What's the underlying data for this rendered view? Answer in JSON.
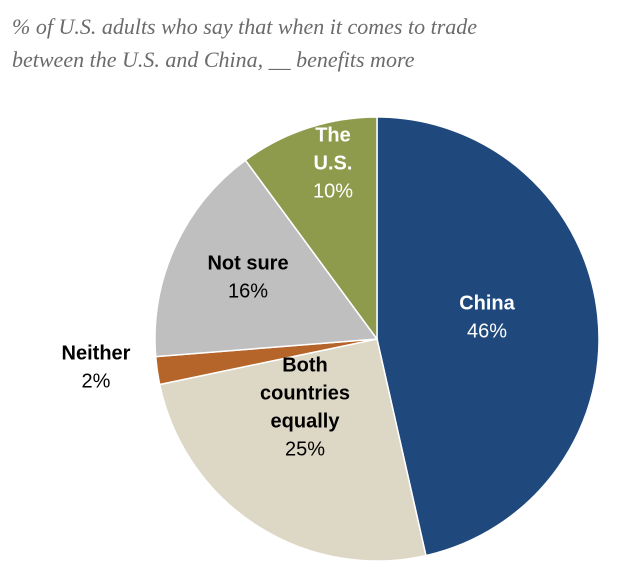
{
  "subtitle": {
    "line1": "% of U.S. adults who say that when it comes to trade",
    "line2": "between the U.S. and China, __ benefits more"
  },
  "chart_data": {
    "type": "pie",
    "subtitle": "% of U.S. adults who say that when it comes to trade between the U.S. and China, __ benefits more",
    "slices": [
      {
        "label": "China",
        "label_lines": [
          "China"
        ],
        "value": 46,
        "display": "46%",
        "color": "#1f497d",
        "label_color": "#ffffff"
      },
      {
        "label": "Both countries equally",
        "label_lines": [
          "Both",
          "countries",
          "equally"
        ],
        "value": 25,
        "display": "25%",
        "color": "#ddd7c6",
        "label_color": "#000000"
      },
      {
        "label": "Neither",
        "label_lines": [
          "Neither"
        ],
        "value": 2,
        "display": "2%",
        "color": "#b5652a",
        "label_color": "#000000"
      },
      {
        "label": "Not sure",
        "label_lines": [
          "Not sure"
        ],
        "value": 16,
        "display": "16%",
        "color": "#bfbfbf",
        "label_color": "#000000"
      },
      {
        "label": "The U.S.",
        "label_lines": [
          "The",
          "U.S."
        ],
        "value": 10,
        "display": "10%",
        "color": "#8f9b4c",
        "label_color": "#ffffff"
      }
    ],
    "start_angle": "12 o'clock",
    "direction": "clockwise",
    "legend": "none"
  }
}
